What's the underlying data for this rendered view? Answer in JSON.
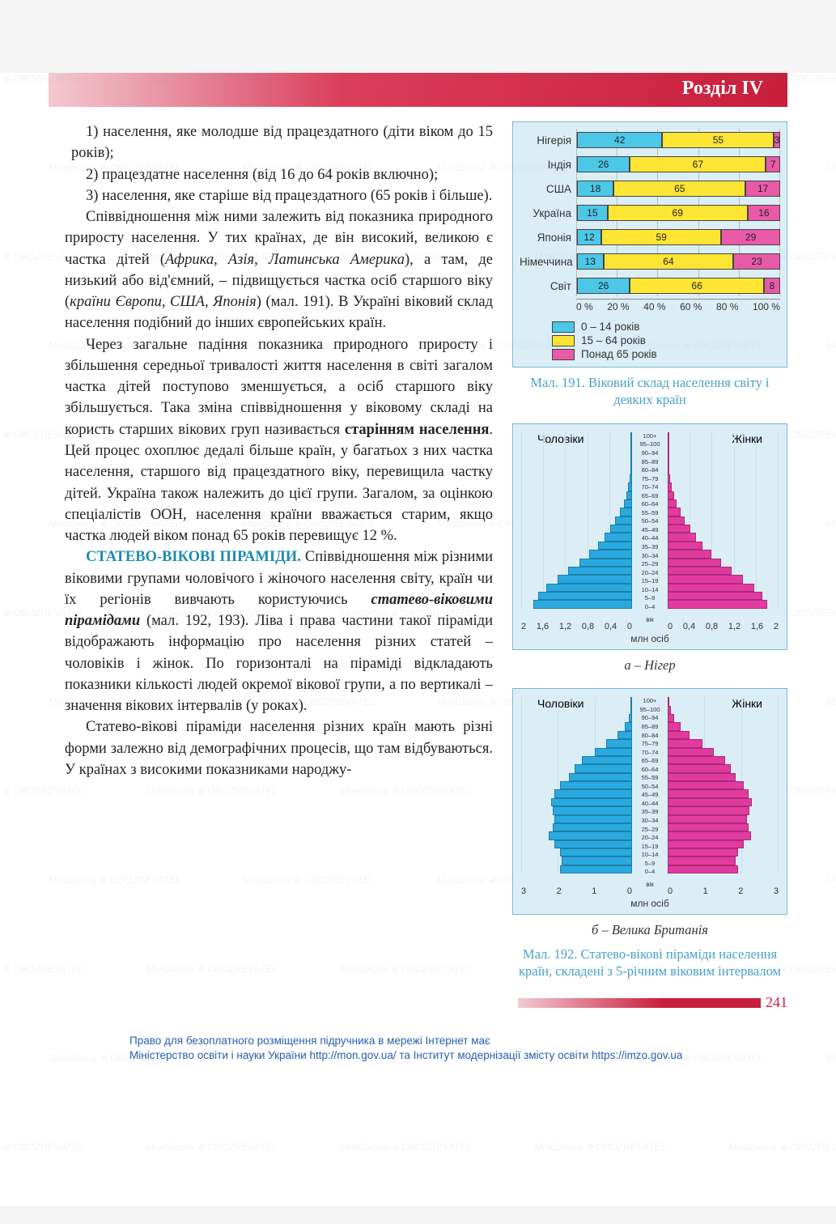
{
  "header": {
    "title": "Розділ IV"
  },
  "text": {
    "li1": "1) населення, яке молодше від працездатного (діти віком до 15 років);",
    "li2": "2) працездатне населення (від 16 до 64 років включно);",
    "li3": "3) населення, яке старіше від працездатного (65 років і більше).",
    "p1a": "Співвідношення між ними залежить від показника природного приросту населення. У тих країнах, де він високий, великою є частка дітей (",
    "p1b": "Африка, Азія, Латинська Аме­рика",
    "p1c": "), а там, де низький або від'ємний, – під­вищується частка осіб старшого віку (",
    "p1d": "країни Європи, США, Японія",
    "p1e": ") (мал. 191). В Україні віковий склад населення подібний до інших європейських країн.",
    "p2a": "Через загальне падіння показника при­родного приросту і збільшення середньої тривалості життя населення в світі загалом частка дітей поступово зменшується, а осіб старшого віку збільшується. Така зміна співвідношення у віковому складі на користь старших вікових груп називається ",
    "p2b": "старінням населення",
    "p2c": ". Цей процес охоплює дедалі біль­ше країн, у багатьох з них частка населення, старшого від працездатного віку, перевищила частку дітей. Україна також належить до цієї групи. Загалом, за оцінкою спеціалістів ООН, населення країни вважається старим, якщо частка людей віком понад 65 років перевищує 12 %.",
    "p3t": "СТАТЕВО-ВІКОВІ ПІРАМІДИ.",
    "p3a": " Співвідно­шення між різними віковими групами чоло­вічого і жіночого населення світу, країн чи їх регіонів вивчають користуючись ",
    "p3b": "статево-віковими пірамідами",
    "p3c": " (мал. 192, 193). Ліва і права частини такої піраміди відображають інформацію про населення різних статей – чоловіків і жінок. По горизонталі на піраміді відкладають показники кількості людей окре­мої вікової групи, а по вертикалі – значення вікових інтервалів (у роках).",
    "p4": "Статево-вікові піраміди населення різних країн мають різні форми залежно від демо­графічних процесів, що там відбуваються. У країнах з високими показниками народжу-"
  },
  "fig191": {
    "type": "stacked-bar-horizontal",
    "rows": [
      {
        "label": "Нігерія",
        "v": [
          42,
          55,
          3
        ]
      },
      {
        "label": "Індія",
        "v": [
          26,
          67,
          7
        ]
      },
      {
        "label": "США",
        "v": [
          18,
          65,
          17
        ]
      },
      {
        "label": "Україна",
        "v": [
          15,
          69,
          16
        ]
      },
      {
        "label": "Японія",
        "v": [
          12,
          59,
          29
        ]
      },
      {
        "label": "Німеччина",
        "v": [
          13,
          64,
          23
        ]
      },
      {
        "label": "Світ",
        "v": [
          26,
          66,
          8
        ]
      }
    ],
    "colors": [
      "#4cc7e8",
      "#ffe533",
      "#e85aa8"
    ],
    "xticks": [
      "0 %",
      "20 %",
      "40 %",
      "60 %",
      "80 %",
      "100 %"
    ],
    "legend": [
      "0 – 14 років",
      "15 – 64 років",
      "Понад 65 років"
    ],
    "caption": "Мал. 191. Віковий склад населення світу і деяких країн"
  },
  "pyramid_common": {
    "ages": [
      "100+",
      "95–100",
      "90–94",
      "85–89",
      "80–84",
      "75–79",
      "70–74",
      "65–69",
      "60–64",
      "55–59",
      "50–54",
      "45–49",
      "40–44",
      "35–39",
      "30–34",
      "25–29",
      "20–24",
      "15–19",
      "10–14",
      "5–9",
      "0–4"
    ],
    "vik_label": "вік",
    "male_label": "Чоловіки",
    "female_label": "Жінки",
    "male_color": "#2aa9e0",
    "female_color": "#e23aa0"
  },
  "pyrA": {
    "xticks_left": [
      "2",
      "1,6",
      "1,2",
      "0,8",
      "0,4",
      "0"
    ],
    "xticks_right": [
      "0",
      "0,4",
      "0,8",
      "1,2",
      "1,6",
      "2"
    ],
    "axis_caption": "млн осіб",
    "xmax": 2.0,
    "male": [
      0.005,
      0.01,
      0.012,
      0.015,
      0.02,
      0.04,
      0.07,
      0.1,
      0.15,
      0.22,
      0.3,
      0.4,
      0.5,
      0.62,
      0.78,
      0.95,
      1.15,
      1.35,
      1.55,
      1.7,
      1.78
    ],
    "female": [
      0.006,
      0.011,
      0.013,
      0.017,
      0.023,
      0.045,
      0.075,
      0.11,
      0.16,
      0.23,
      0.31,
      0.41,
      0.51,
      0.63,
      0.79,
      0.96,
      1.16,
      1.36,
      1.56,
      1.71,
      1.79
    ],
    "caption": "а – Нігер"
  },
  "pyrB": {
    "xticks_left": [
      "3",
      "2",
      "1",
      "0"
    ],
    "xticks_right": [
      "0",
      "1",
      "2",
      "3"
    ],
    "axis_caption": "млн осіб",
    "xmax": 3.0,
    "male": [
      0.01,
      0.03,
      0.08,
      0.2,
      0.4,
      0.7,
      1.0,
      1.35,
      1.55,
      1.7,
      1.95,
      2.1,
      2.2,
      2.15,
      2.1,
      2.15,
      2.25,
      2.1,
      1.95,
      1.9,
      1.95
    ],
    "female": [
      0.03,
      0.08,
      0.18,
      0.35,
      0.6,
      0.95,
      1.25,
      1.55,
      1.7,
      1.85,
      2.05,
      2.2,
      2.28,
      2.22,
      2.15,
      2.18,
      2.25,
      2.05,
      1.9,
      1.85,
      1.9
    ],
    "caption": "б – Велика Британія"
  },
  "fig192_caption": "Мал. 192. Статево-вікові піраміди населення країн, складені з 5-річним віковим інтервалом",
  "page_number": "241",
  "copyright_l1": "Право для безоплатного розміщення підручника в мережі Інтернет має",
  "copyright_l2": "Міністерство освіти і науки України http://mon.gov.ua/ та Інститут модернізації змісту освіти https://imzo.gov.ua",
  "watermark_text": "МояШкола ⊕ OBOZREVATEL"
}
